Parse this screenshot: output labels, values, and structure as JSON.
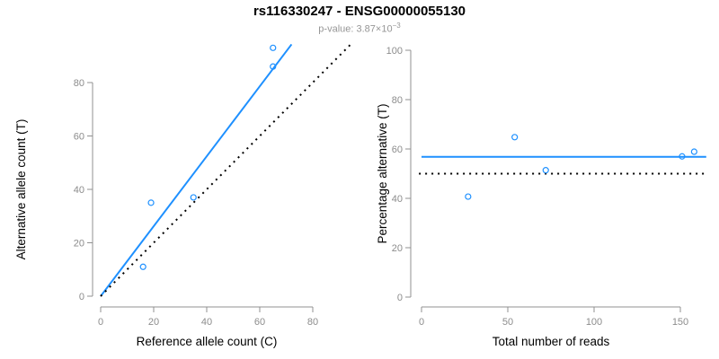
{
  "header": {
    "title": "rs116330247 - ENSG00000055130",
    "pvalue_text": "p-value: 3.87×10",
    "pvalue_exponent": "−3"
  },
  "colors": {
    "accent_blue": "#1E90FF",
    "axis_gray": "#909090",
    "tick_label_gray": "#8c8c8c",
    "axis_title_black": "#000000",
    "dotted_line_black": "#000000",
    "subtitle_gray": "#969696"
  },
  "chart_data": [
    {
      "type": "scatter",
      "name": "allele-counts-plot",
      "xlabel": "Reference allele count (C)",
      "ylabel": "Alternative allele count (T)",
      "xlim": [
        0,
        95
      ],
      "ylim": [
        0,
        95
      ],
      "xticks": [
        0,
        20,
        40,
        60,
        80
      ],
      "yticks": [
        0,
        20,
        40,
        60,
        80
      ],
      "grid": false,
      "legend": null,
      "point_style": "open-circle",
      "point_color": "#1E90FF",
      "points": [
        [
          16,
          11
        ],
        [
          19,
          35
        ],
        [
          35,
          37
        ],
        [
          65,
          86
        ],
        [
          65,
          93
        ]
      ],
      "lines": [
        {
          "name": "regression-line",
          "x1": 0,
          "y1": 0,
          "x2": 72,
          "y2": 94.3,
          "color": "#1E90FF",
          "dash": "solid",
          "width": 2
        },
        {
          "name": "identity-line",
          "x1": 0,
          "y1": 0,
          "x2": 94.5,
          "y2": 94.5,
          "color": "#000000",
          "dash": "dotted",
          "width": 2
        }
      ]
    },
    {
      "type": "scatter",
      "name": "percentage-vs-reads-plot",
      "xlabel": "Total number of reads",
      "ylabel": "Percentage alternative (T)",
      "xlim": [
        0,
        165
      ],
      "ylim": [
        0,
        104
      ],
      "xticks": [
        0,
        50,
        100,
        150
      ],
      "yticks": [
        0,
        20,
        40,
        60,
        80,
        100
      ],
      "grid": false,
      "legend": null,
      "point_style": "open-circle",
      "point_color": "#1E90FF",
      "points": [
        [
          27,
          40.7
        ],
        [
          54,
          64.8
        ],
        [
          72,
          51.4
        ],
        [
          151,
          57.0
        ],
        [
          158,
          58.9
        ]
      ],
      "lines": [
        {
          "name": "mean-percentage-line",
          "x1": 0,
          "y1": 56.8,
          "x2": 165,
          "y2": 56.8,
          "color": "#1E90FF",
          "dash": "solid",
          "width": 2
        },
        {
          "name": "fifty-percent-line",
          "x1": -1.5,
          "y1": 50,
          "x2": 165,
          "y2": 50,
          "color": "#000000",
          "dash": "dotted",
          "width": 2
        }
      ]
    }
  ]
}
